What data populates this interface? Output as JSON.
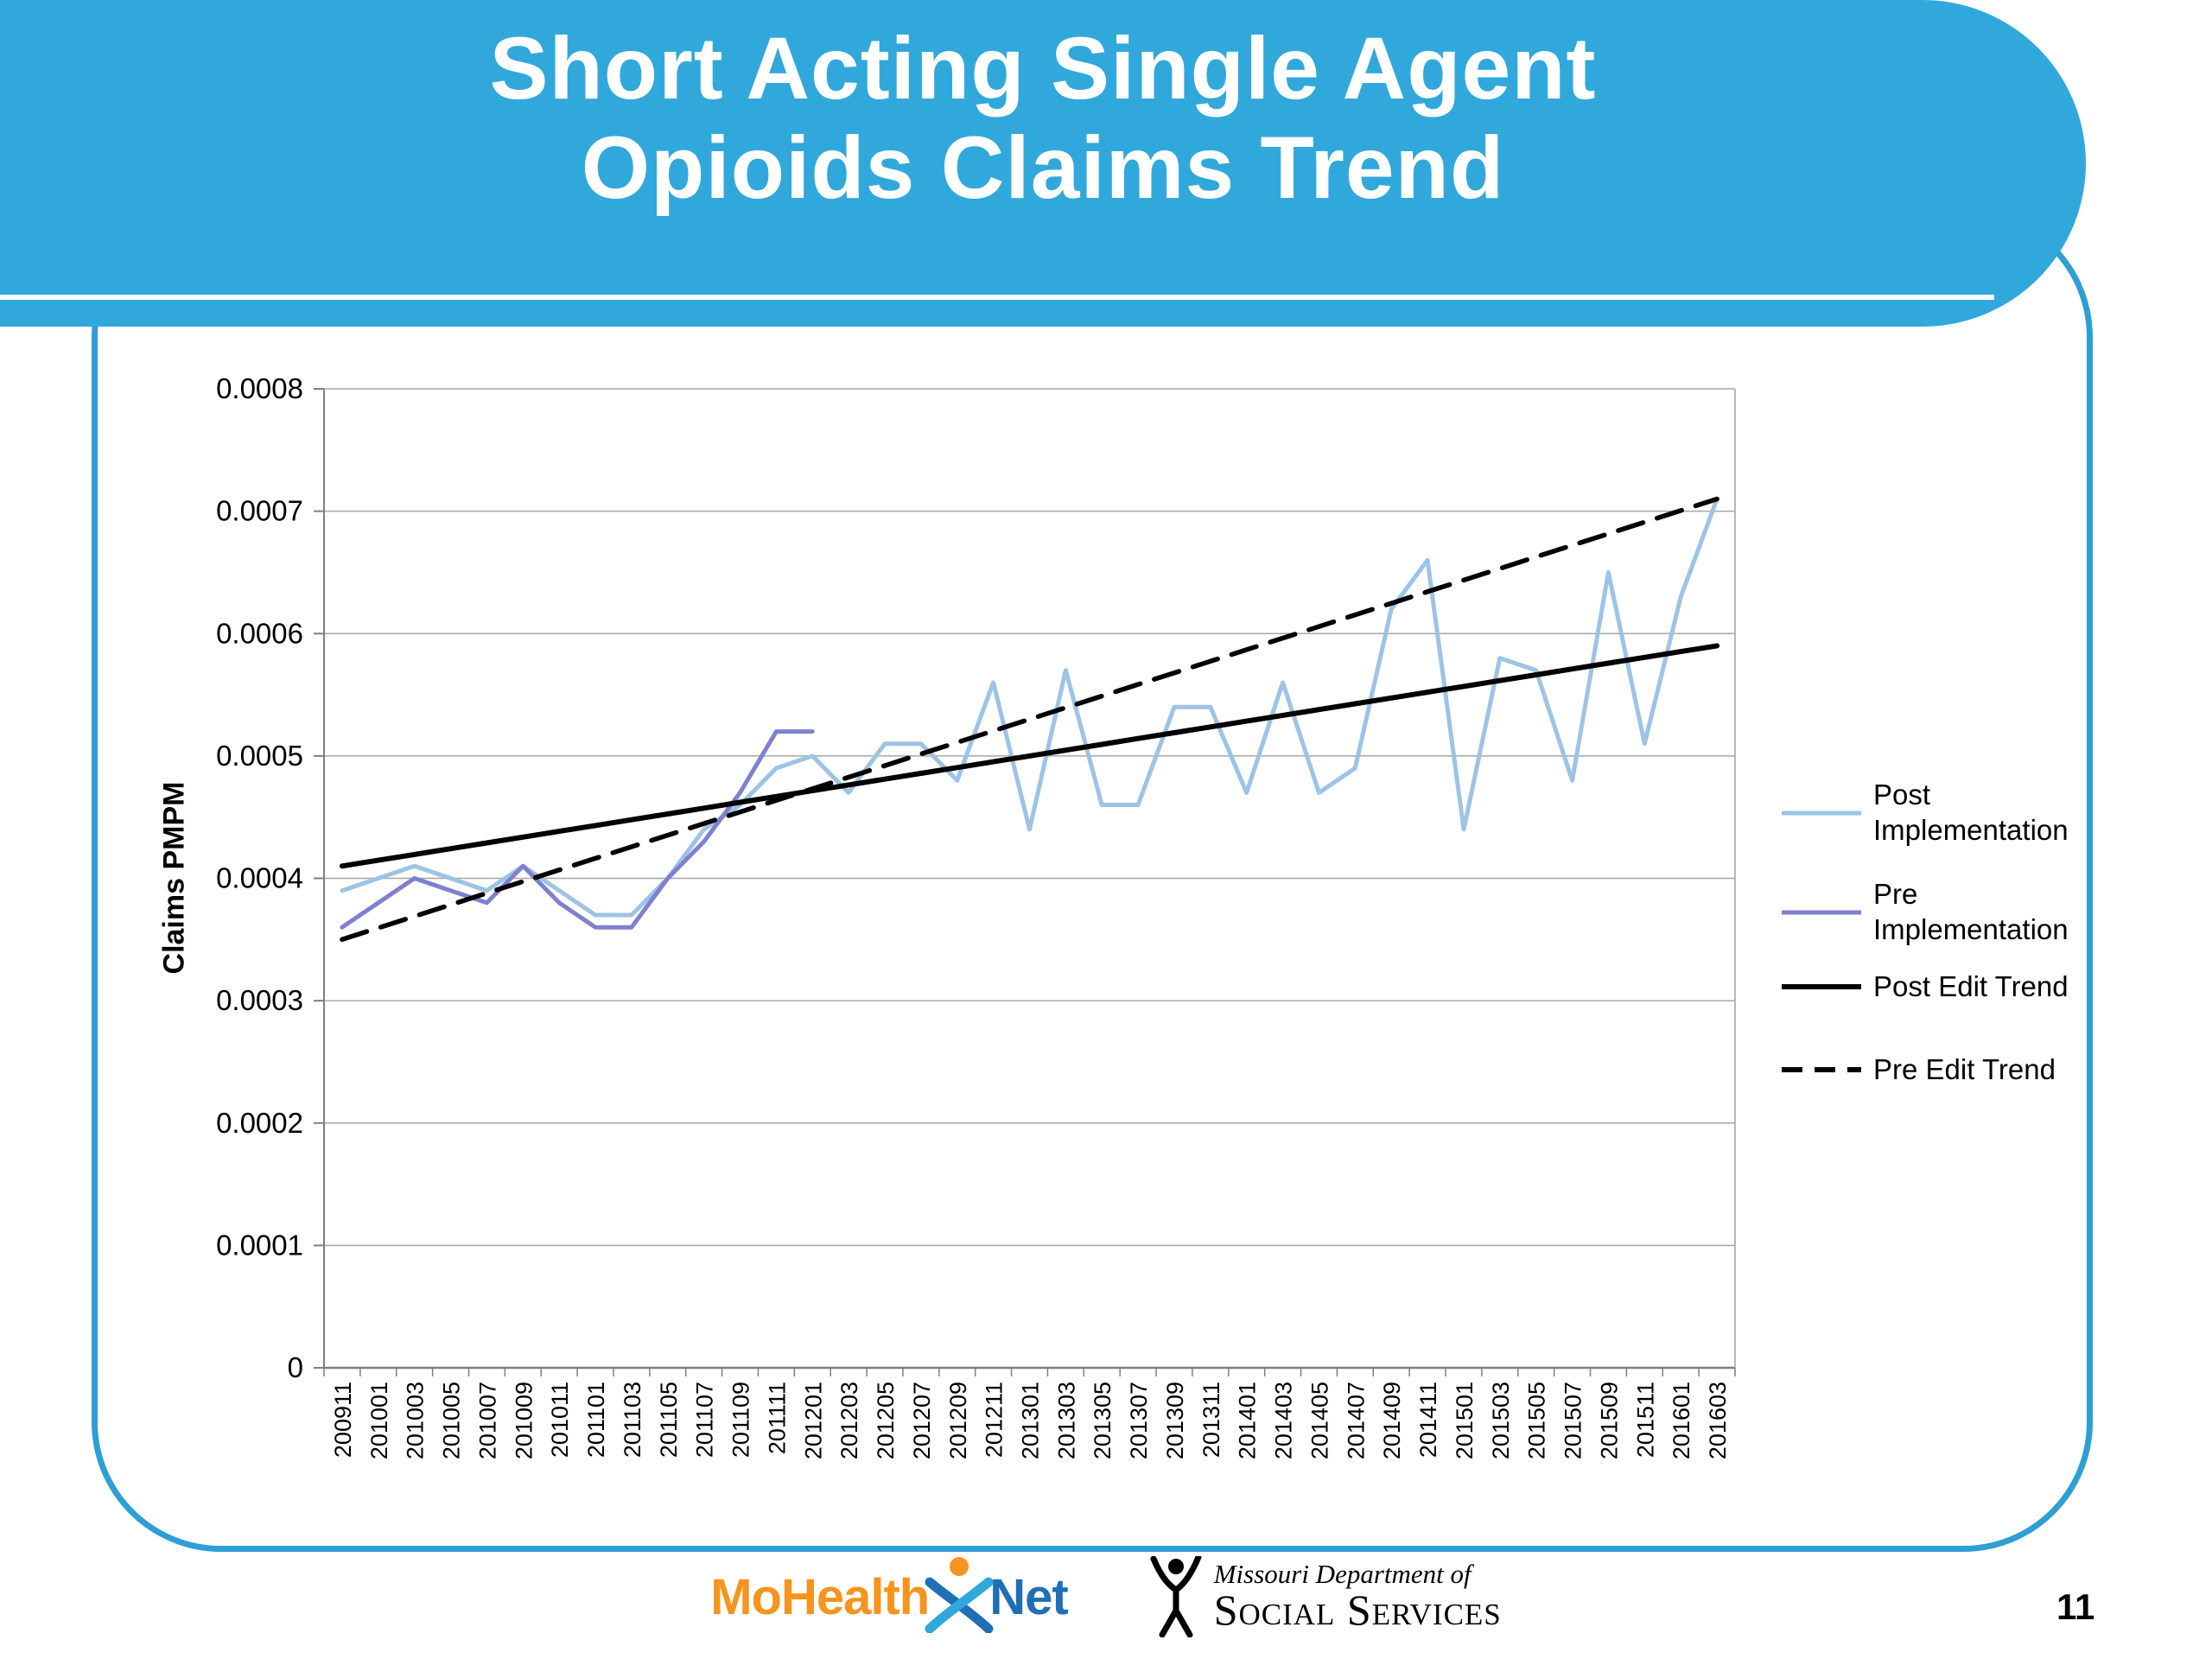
{
  "slide": {
    "title_line1": "Short Acting Single Agent",
    "title_line2": "Opioids Claims Trend",
    "page_number": "11"
  },
  "footer": {
    "mohealthnet": {
      "mohealth": "MoHealth",
      "net": "Net"
    },
    "dss": {
      "line1": "Missouri Department of",
      "line2": "Social Services"
    }
  },
  "colors": {
    "header_blue": "#31a8dc",
    "frame_blue": "#2e9fd4",
    "post_implementation_line": "#9dc3e6",
    "pre_implementation_line": "#8080d0",
    "trend_black": "#000000",
    "mohealth_orange": "#f7941e",
    "net_blue": "#1f6fb5"
  },
  "chart_data": {
    "type": "line",
    "title": "",
    "xlabel": "",
    "ylabel": "Claims PMPM",
    "ylim": [
      0,
      0.0008
    ],
    "ytick_step": 0.0001,
    "grid": true,
    "legend_position": "right",
    "categories": [
      "200911",
      "201001",
      "201003",
      "201005",
      "201007",
      "201009",
      "201011",
      "201101",
      "201103",
      "201105",
      "201107",
      "201109",
      "201111",
      "201201",
      "201203",
      "201205",
      "201207",
      "201209",
      "201211",
      "201301",
      "201303",
      "201305",
      "201307",
      "201309",
      "201311",
      "201401",
      "201403",
      "201405",
      "201407",
      "201409",
      "201411",
      "201501",
      "201503",
      "201505",
      "201507",
      "201509",
      "201511",
      "201601",
      "201603"
    ],
    "series": [
      {
        "name": "Post Implementation",
        "color": "#9dc3e6",
        "style": "solid",
        "values": [
          0.00039,
          0.0004,
          0.00041,
          0.0004,
          0.00039,
          0.00041,
          0.00039,
          0.00037,
          0.00037,
          0.0004,
          0.00044,
          0.00046,
          0.00049,
          0.0005,
          0.00047,
          0.00051,
          0.00051,
          0.00048,
          0.00056,
          0.00044,
          0.00057,
          0.00046,
          0.00046,
          0.00054,
          0.00054,
          0.00047,
          0.00056,
          0.00047,
          0.00049,
          0.00062,
          0.00066,
          0.00044,
          0.00058,
          0.00057,
          0.00048,
          0.00065,
          0.00051,
          0.00063,
          0.00071
        ]
      },
      {
        "name": "Pre Implementation",
        "color": "#8080d0",
        "style": "solid",
        "values": [
          0.00036,
          0.00038,
          0.0004,
          0.00039,
          0.00038,
          0.00041,
          0.00038,
          0.00036,
          0.00036,
          0.0004,
          0.00043,
          0.00047,
          0.00052,
          0.00052,
          null,
          null,
          null,
          null,
          null,
          null,
          null,
          null,
          null,
          null,
          null,
          null,
          null,
          null,
          null,
          null,
          null,
          null,
          null,
          null,
          null,
          null,
          null,
          null,
          null
        ]
      },
      {
        "name": "Post Edit Trend",
        "color": "#000000",
        "style": "solid",
        "endpoints": [
          0.00041,
          0.00059
        ]
      },
      {
        "name": "Pre Edit Trend",
        "color": "#000000",
        "style": "dashed",
        "endpoints": [
          0.00035,
          0.00071
        ]
      }
    ]
  }
}
